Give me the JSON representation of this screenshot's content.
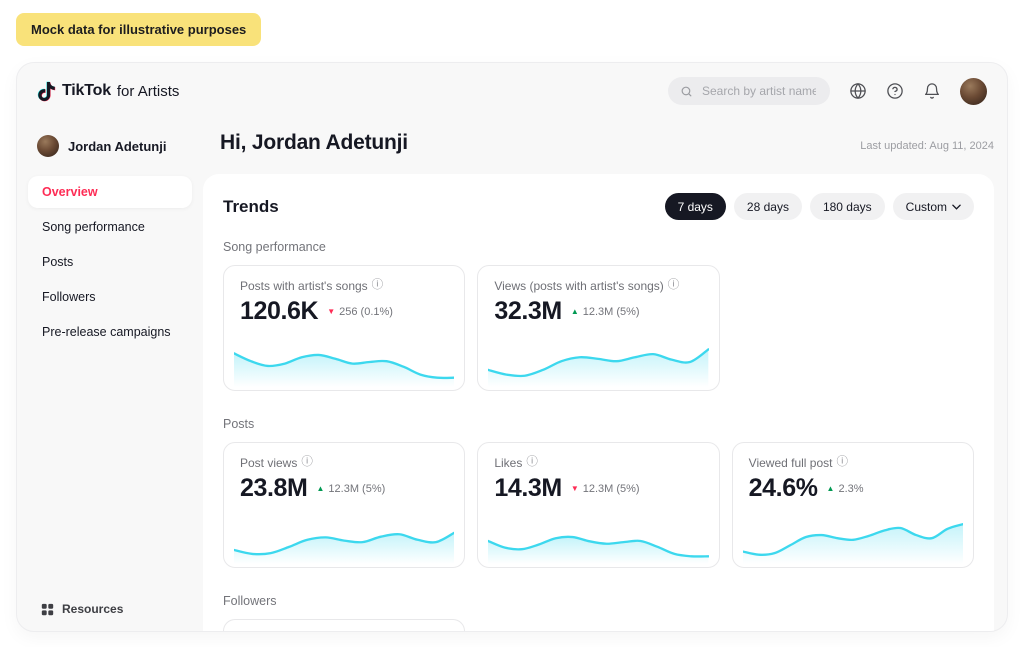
{
  "banner": {
    "label": "Mock data for illustrative purposes"
  },
  "header": {
    "brand": "TikTok",
    "brand_suffix": "for Artists",
    "search_placeholder": "Search by artist name",
    "icons": [
      "globe-icon",
      "help-icon",
      "bell-icon",
      "avatar"
    ]
  },
  "sidebar": {
    "profile_name": "Jordan Adetunji",
    "items": [
      {
        "label": "Overview",
        "active": true
      },
      {
        "label": "Song performance",
        "active": false
      },
      {
        "label": "Posts",
        "active": false
      },
      {
        "label": "Followers",
        "active": false
      },
      {
        "label": "Pre-release campaigns",
        "active": false
      }
    ],
    "resources_label": "Resources"
  },
  "main": {
    "greeting": "Hi, Jordan Adetunji",
    "last_updated": "Last updated: Aug 11, 2024"
  },
  "trends": {
    "title": "Trends",
    "filters": [
      {
        "label": "7 days",
        "active": true
      },
      {
        "label": "28 days",
        "active": false
      },
      {
        "label": "180 days",
        "active": false
      },
      {
        "label": "Custom",
        "active": false,
        "dropdown": true
      }
    ],
    "sections": [
      {
        "label": "Song performance",
        "cards": [
          {
            "label": "Posts with artist's songs",
            "value": "120.6K",
            "direction": "down",
            "delta": "256 (0.1%)",
            "spark": [
              72,
              52,
              40,
              46,
              62,
              68,
              58,
              46,
              50,
              52,
              38,
              18,
              10,
              10
            ]
          },
          {
            "label": "Views (posts with artist's songs)",
            "value": "32.3M",
            "direction": "up",
            "delta": "12.3M (5%)",
            "spark": [
              30,
              18,
              15,
              30,
              52,
              62,
              58,
              52,
              62,
              70,
              56,
              50,
              82
            ]
          }
        ]
      },
      {
        "label": "Posts",
        "cards": [
          {
            "label": "Post views",
            "value": "23.8M",
            "direction": "up",
            "delta": "12.3M (5%)",
            "spark": [
              22,
              12,
              14,
              30,
              48,
              54,
              46,
              42,
              56,
              62,
              48,
              42,
              66
            ]
          },
          {
            "label": "Likes",
            "value": "14.3M",
            "direction": "down",
            "delta": "12.3M (5%)",
            "spark": [
              45,
              28,
              24,
              36,
              52,
              55,
              44,
              38,
              42,
              45,
              30,
              12,
              6,
              6
            ]
          },
          {
            "label": "Viewed full post",
            "value": "24.6%",
            "direction": "up",
            "delta": "2.3%",
            "spark": [
              18,
              10,
              14,
              34,
              55,
              60,
              52,
              48,
              58,
              72,
              78,
              60,
              52,
              76,
              88
            ]
          }
        ]
      },
      {
        "label": "Followers",
        "cards": []
      }
    ]
  },
  "colors": {
    "accent": "#FE2C55",
    "positive": "#009952",
    "negative": "#FE2C55",
    "banner_bg": "#F9E27A",
    "spark_line": "#3CD8EE"
  }
}
